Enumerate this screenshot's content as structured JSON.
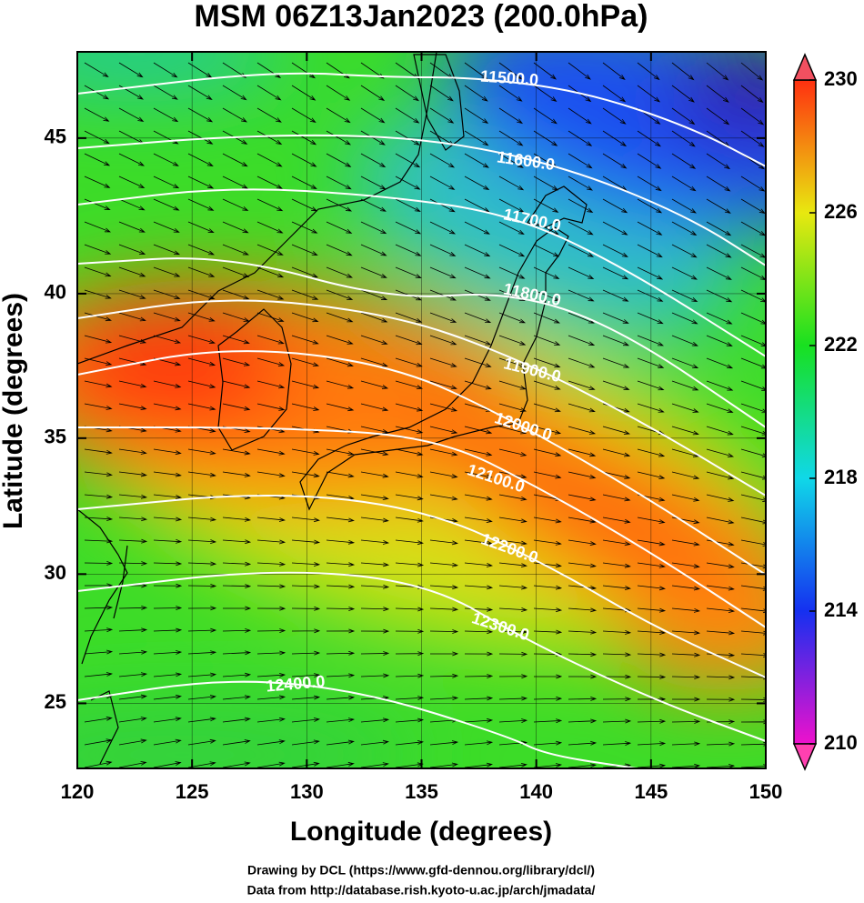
{
  "chart_data": {
    "type": "map",
    "title": "MSM 06Z13Jan2023 (200.0hPa)",
    "x_label": "Longitude (degrees)",
    "y_label": "Latitude  (degrees)",
    "projection": "mercator",
    "xlim": [
      120,
      150
    ],
    "ylim": [
      22.4,
      47.6
    ],
    "xticks": [
      120,
      125,
      130,
      135,
      140,
      145,
      150
    ],
    "yticks": [
      25,
      30,
      35,
      40,
      45
    ],
    "grid": true,
    "colorbar": {
      "clim": [
        210,
        230
      ],
      "ticks": [
        210,
        214,
        218,
        222,
        226,
        230
      ],
      "colors": [
        "#ee11cc",
        "#1530f0",
        "#10d8e8",
        "#18e020",
        "#e8e810",
        "#ff3010"
      ]
    },
    "contours": [
      {
        "value": 11500,
        "label": "11500.0"
      },
      {
        "value": 11600,
        "label": "11600.0"
      },
      {
        "value": 11700,
        "label": "11700.0"
      },
      {
        "value": 11800,
        "label": "11800.0"
      },
      {
        "value": 11900,
        "label": "11900.0"
      },
      {
        "value": 12000,
        "label": "12000.0"
      },
      {
        "value": 12100,
        "label": "12100.0"
      },
      {
        "value": 12200,
        "label": "12200.0"
      },
      {
        "value": 12300,
        "label": "12300.0"
      },
      {
        "value": 12400,
        "label": "12400.0"
      }
    ]
  },
  "credits": [
    "Drawing by DCL (https://www.gfd-dennou.org/library/dcl/)",
    "Data from http://database.rish.kyoto-u.ac.jp/arch/jmadata/"
  ]
}
